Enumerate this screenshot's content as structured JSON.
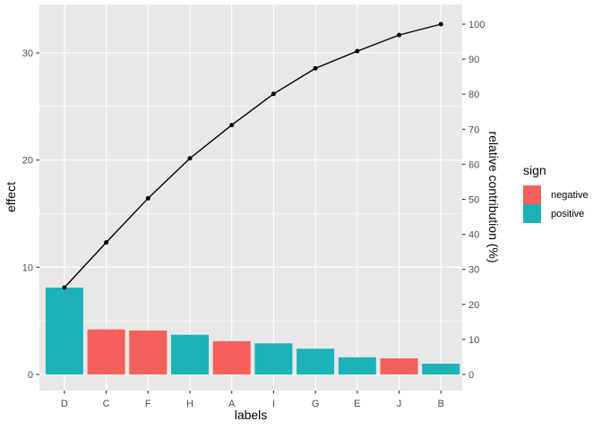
{
  "chart_data": {
    "type": "bar+line (pareto chart)",
    "title": "",
    "xlabel": "labels",
    "ylabel_left": "effect",
    "ylabel_right": "relative contribution (%)",
    "categories": [
      "D",
      "C",
      "F",
      "H",
      "A",
      "I",
      "G",
      "E",
      "J",
      "B"
    ],
    "bar_values": [
      8.1,
      4.2,
      4.1,
      3.7,
      3.1,
      2.9,
      2.4,
      1.6,
      1.5,
      1.0
    ],
    "bar_signs": [
      "positive",
      "negative",
      "negative",
      "positive",
      "negative",
      "positive",
      "positive",
      "positive",
      "negative",
      "positive"
    ],
    "cumulative_pct": [
      24.8,
      37.7,
      50.3,
      61.7,
      71.2,
      80.1,
      87.4,
      92.3,
      96.9,
      100.0
    ],
    "left_axis": {
      "ticks": [
        0,
        10,
        20,
        30
      ],
      "minor_ticks": [
        5,
        15,
        25
      ],
      "range": [
        -1.5,
        34.5
      ]
    },
    "right_axis": {
      "ticks": [
        0,
        10,
        20,
        30,
        40,
        50,
        60,
        70,
        80,
        90,
        100
      ],
      "range": [
        -4.5,
        105.5
      ]
    },
    "legend": {
      "title": "sign",
      "entries": [
        {
          "label": "negative",
          "color": "#F5605B"
        },
        {
          "label": "positive",
          "color": "#1BB3B7"
        }
      ]
    },
    "grid": "on",
    "legend_position": "right",
    "colors": {
      "negative": "#F5605B",
      "positive": "#1BB3B7",
      "line": "#000000",
      "point": "#000000",
      "panel_bg": "#E8E8E8",
      "grid": "#FFFFFF",
      "tick_text": "#4D4D4D",
      "tick_mark": "#333333",
      "axis_text": "#000000"
    }
  }
}
